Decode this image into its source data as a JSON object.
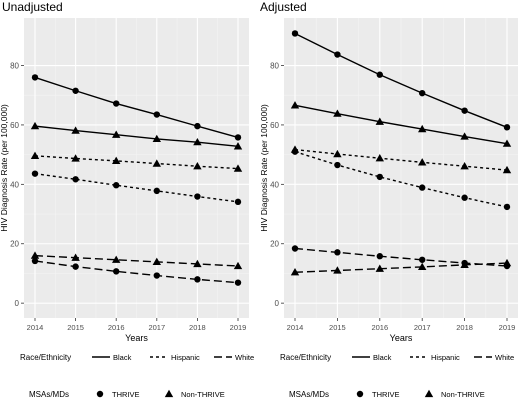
{
  "chart_data": [
    {
      "type": "line",
      "title": "Unadjusted",
      "xlabel": "Years",
      "ylabel": "HIV Diagnosis Rate (per 100,000)",
      "x": [
        2014,
        2015,
        2016,
        2017,
        2018,
        2019
      ],
      "ylim": [
        -5,
        96
      ],
      "yticks": [
        0,
        20,
        40,
        60,
        80
      ],
      "grid": true,
      "series": [
        {
          "race": "Black",
          "group": "THRIVE",
          "values": [
            76.0,
            71.5,
            67.2,
            63.5,
            59.6,
            55.8
          ]
        },
        {
          "race": "Black",
          "group": "Non-THRIVE",
          "values": [
            59.6,
            58.1,
            56.7,
            55.3,
            54.2,
            52.8
          ]
        },
        {
          "race": "Hispanic",
          "group": "Non-THRIVE",
          "values": [
            49.6,
            48.7,
            47.9,
            47.0,
            46.1,
            45.3
          ]
        },
        {
          "race": "Hispanic",
          "group": "THRIVE",
          "values": [
            43.6,
            41.7,
            39.7,
            37.8,
            35.9,
            34.1
          ]
        },
        {
          "race": "White",
          "group": "Non-THRIVE",
          "values": [
            16.0,
            15.3,
            14.6,
            13.9,
            13.2,
            12.5
          ]
        },
        {
          "race": "White",
          "group": "THRIVE",
          "values": [
            14.2,
            12.3,
            10.7,
            9.3,
            8.0,
            6.9
          ]
        }
      ]
    },
    {
      "type": "line",
      "title": "Adjusted",
      "xlabel": "Years",
      "ylabel": "HIV Diagnosis Rate (per 100,000)",
      "x": [
        2014,
        2015,
        2016,
        2017,
        2018,
        2019
      ],
      "ylim": [
        -5,
        96
      ],
      "yticks": [
        0,
        20,
        40,
        60,
        80
      ],
      "grid": true,
      "series": [
        {
          "race": "Black",
          "group": "THRIVE",
          "values": [
            90.8,
            83.7,
            76.9,
            70.7,
            64.8,
            59.2
          ]
        },
        {
          "race": "Black",
          "group": "Non-THRIVE",
          "values": [
            66.6,
            63.8,
            61.1,
            58.6,
            56.1,
            53.7
          ]
        },
        {
          "race": "Hispanic",
          "group": "Non-THRIVE",
          "values": [
            51.7,
            50.2,
            48.8,
            47.4,
            46.1,
            44.8
          ]
        },
        {
          "race": "Hispanic",
          "group": "THRIVE",
          "values": [
            51.0,
            46.5,
            42.5,
            38.9,
            35.5,
            32.4
          ]
        },
        {
          "race": "White",
          "group": "THRIVE",
          "values": [
            18.4,
            17.1,
            15.8,
            14.6,
            13.5,
            12.5
          ]
        },
        {
          "race": "White",
          "group": "Non-THRIVE",
          "values": [
            10.4,
            11.0,
            11.6,
            12.2,
            12.9,
            13.5
          ]
        }
      ]
    }
  ],
  "legends": {
    "race_title": "Race/Ethnicity",
    "race_items": [
      {
        "label": "Black",
        "linetype": "solid"
      },
      {
        "label": "Hispanic",
        "linetype": "dotted"
      },
      {
        "label": "White",
        "linetype": "dashed"
      }
    ],
    "shape_title": "MSAs/MDs",
    "shape_items": [
      {
        "label": "THRIVE",
        "shape": "circle"
      },
      {
        "label": "Non-THRIVE",
        "shape": "triangle"
      }
    ]
  },
  "colors": {
    "panel_bg": "#ebebeb",
    "grid_major": "#ffffff",
    "grid_minor": "#f4f4f4",
    "ink": "#000000",
    "tick_text": "#4d4d4d"
  }
}
